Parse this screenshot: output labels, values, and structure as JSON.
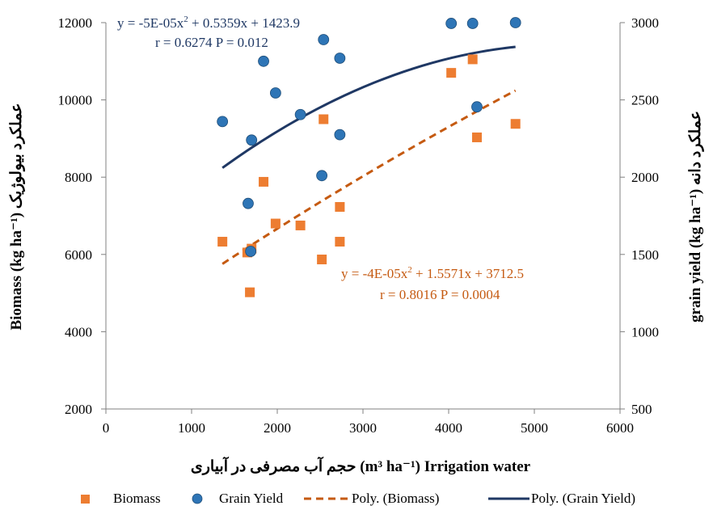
{
  "chart_data": {
    "type": "scatter",
    "xlabel": "حجم آب مصرفی در آبیاری (m³ ha⁻¹) Irrigation water",
    "ylabel_left": "Biomass (kg ha⁻¹) عملکرد بیولوژیک",
    "ylabel_right": "grain yield (kg ha⁻¹) عملکرد دانه",
    "xlim": [
      0,
      6000
    ],
    "x_ticks": [
      "0",
      "1000",
      "2000",
      "3000",
      "4000",
      "5000",
      "6000"
    ],
    "ylim_left": [
      2000,
      12000
    ],
    "y_left_ticks": [
      "2000",
      "4000",
      "6000",
      "8000",
      "10000",
      "12000"
    ],
    "ylim_right": [
      500,
      3000
    ],
    "y_right_ticks": [
      "500",
      "1000",
      "1500",
      "2000",
      "2500",
      "3000"
    ],
    "grid": false,
    "legend_position": "bottom",
    "colors": {
      "biomass": "#ED7D31",
      "grain": "#2E75B6",
      "biomass_fit": "#C55A11",
      "grain_fit": "#1F3864"
    },
    "series": [
      {
        "name": "Biomass",
        "axis": "left",
        "marker": "square",
        "points": [
          [
            1360,
            6330
          ],
          [
            1650,
            6050
          ],
          [
            1700,
            6150
          ],
          [
            1680,
            5020
          ],
          [
            1840,
            7880
          ],
          [
            1980,
            6800
          ],
          [
            2270,
            6750
          ],
          [
            2540,
            9500
          ],
          [
            2520,
            5870
          ],
          [
            2730,
            7230
          ],
          [
            2730,
            6330
          ],
          [
            4030,
            10700
          ],
          [
            4280,
            11050
          ],
          [
            4330,
            9030
          ],
          [
            4780,
            9380
          ]
        ]
      },
      {
        "name": "Grain Yield",
        "axis": "right",
        "marker": "circle",
        "points": [
          [
            1360,
            2360
          ],
          [
            1660,
            1830
          ],
          [
            1700,
            2240
          ],
          [
            1690,
            1520
          ],
          [
            1840,
            2750
          ],
          [
            1980,
            2545
          ],
          [
            2270,
            2405
          ],
          [
            2540,
            2890
          ],
          [
            2520,
            2010
          ],
          [
            2730,
            2770
          ],
          [
            2730,
            2275
          ],
          [
            4030,
            2995
          ],
          [
            4280,
            2995
          ],
          [
            4330,
            2455
          ],
          [
            4780,
            3000
          ]
        ]
      }
    ],
    "trendlines": [
      {
        "name": "Poly. (Biomass)",
        "axis": "left",
        "style": "dashed",
        "x_range": [
          1360,
          4780
        ],
        "coef": [
          -4e-05,
          1.5571,
          3712.5
        ]
      },
      {
        "name": "Poly. (Grain Yield)",
        "axis": "right",
        "style": "solid",
        "x_range": [
          1360,
          4780
        ],
        "coef": [
          -5e-05,
          0.5359,
          1423.9
        ]
      }
    ],
    "annotations": {
      "grain_eq_a": "y = -5E-05x",
      "grain_eq_b": " + 0.5359x + 1423.9",
      "grain_stat": "r = 0.6274   P = 0.012",
      "bio_eq_a": "y = -4E-05x",
      "bio_eq_b": " + 1.5571x + 3712.5",
      "bio_stat": "r = 0.8016   P = 0.0004"
    },
    "legend": [
      "Biomass",
      "Grain Yield",
      "Poly. (Biomass)",
      "Poly. (Grain Yield)"
    ]
  }
}
